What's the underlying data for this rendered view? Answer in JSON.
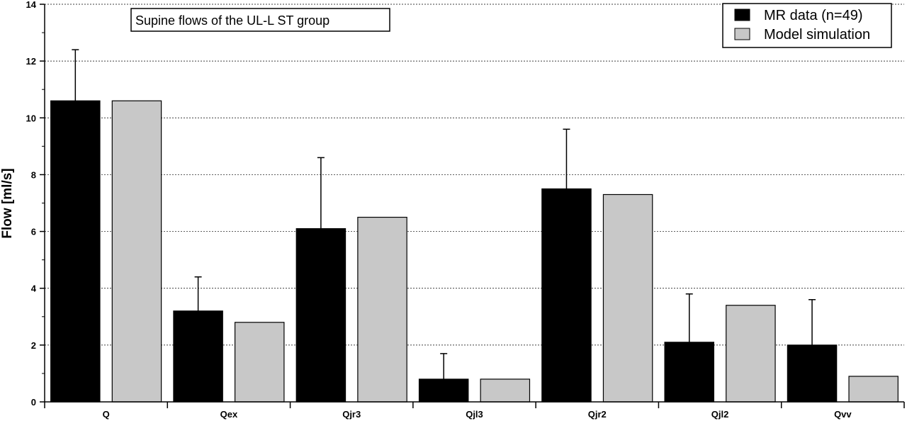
{
  "chart_data": {
    "type": "bar",
    "title": "Supine flows of the UL-L ST group",
    "xlabel": "",
    "ylabel": "Flow [ml/s]",
    "ylim": [
      0,
      14
    ],
    "yticks": [
      0,
      2,
      4,
      6,
      8,
      10,
      12,
      14
    ],
    "grid": "horizontal dotted",
    "legend_position": "top-right",
    "categories": [
      "Q",
      "Qex",
      "Qjr3",
      "Qjl3",
      "Qjr2",
      "Qjl2",
      "Qvv"
    ],
    "series": [
      {
        "name": "MR data (n=49)",
        "color": "#000000",
        "values": [
          10.6,
          3.2,
          6.1,
          0.8,
          7.5,
          2.1,
          2.0
        ],
        "error_upper": [
          1.8,
          1.2,
          2.5,
          0.9,
          2.1,
          1.7,
          1.6
        ]
      },
      {
        "name": "Model simulation",
        "color": "#c8c8c8",
        "values": [
          10.6,
          2.8,
          6.5,
          0.8,
          7.3,
          3.4,
          0.9
        ]
      }
    ]
  }
}
